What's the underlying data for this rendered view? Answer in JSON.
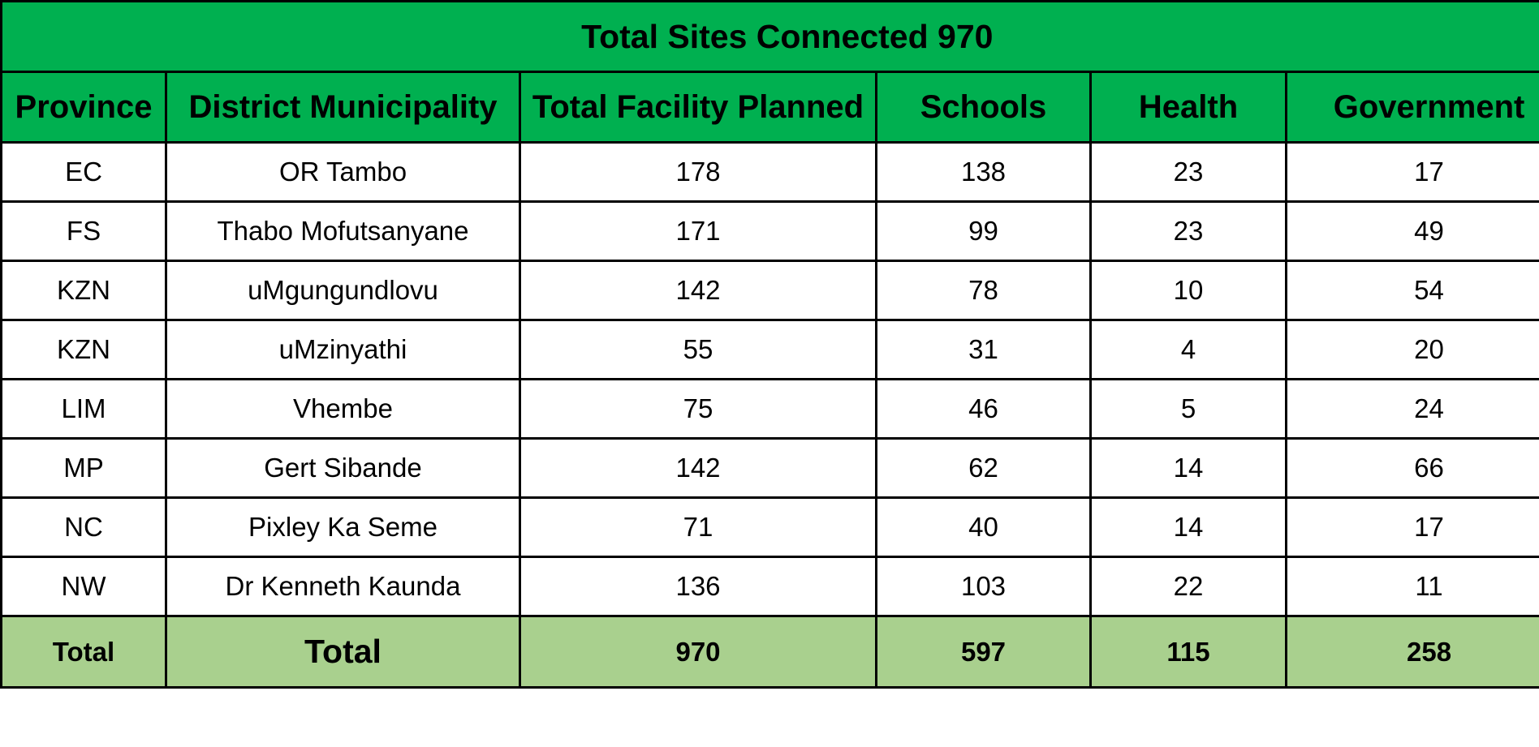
{
  "title": "Total Sites Connected 970",
  "columns": [
    "Province",
    "District Municipality",
    "Total Facility Planned",
    "Schools",
    "Health",
    "Government"
  ],
  "rows": [
    [
      "EC",
      "OR Tambo",
      "178",
      "138",
      "23",
      "17"
    ],
    [
      "FS",
      "Thabo Mofutsanyane",
      "171",
      "99",
      "23",
      "49"
    ],
    [
      "KZN",
      "uMgungundlovu",
      "142",
      "78",
      "10",
      "54"
    ],
    [
      "KZN",
      "uMzinyathi",
      "55",
      "31",
      "4",
      "20"
    ],
    [
      "LIM",
      "Vhembe",
      "75",
      "46",
      "5",
      "24"
    ],
    [
      "MP",
      "Gert Sibande",
      "142",
      "62",
      "14",
      "66"
    ],
    [
      "NC",
      "Pixley Ka Seme",
      "71",
      "40",
      "14",
      "17"
    ],
    [
      "NW",
      "Dr Kenneth Kaunda",
      "136",
      "103",
      "22",
      "11"
    ]
  ],
  "totals": [
    "Total",
    "Total",
    "970",
    "597",
    "115",
    "258"
  ],
  "colors": {
    "header_green": "#00b050",
    "total_green": "#a9d08e",
    "border": "#000000"
  }
}
